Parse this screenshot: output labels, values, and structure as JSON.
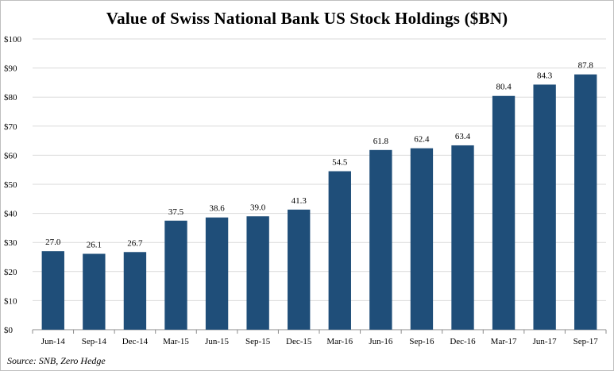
{
  "chart_data": {
    "type": "bar",
    "title": "Value of Swiss National Bank US Stock Holdings ($BN)",
    "xlabel": "",
    "ylabel": "",
    "categories": [
      "Jun-14",
      "Sep-14",
      "Dec-14",
      "Mar-15",
      "Jun-15",
      "Sep-15",
      "Dec-15",
      "Mar-16",
      "Jun-16",
      "Sep-16",
      "Dec-16",
      "Mar-17",
      "Jun-17",
      "Sep-17"
    ],
    "values": [
      27.0,
      26.1,
      26.7,
      37.5,
      38.6,
      39.0,
      41.3,
      54.5,
      61.8,
      62.4,
      63.4,
      80.4,
      84.3,
      87.8
    ],
    "data_labels": [
      "27.0",
      "26.1",
      "26.7",
      "37.5",
      "38.6",
      "39.0",
      "41.3",
      "54.5",
      "61.8",
      "62.4",
      "63.4",
      "80.4",
      "84.3",
      "87.8"
    ],
    "ylim": [
      0,
      100
    ],
    "yticks": [
      0,
      10,
      20,
      30,
      40,
      50,
      60,
      70,
      80,
      90,
      100
    ],
    "ytick_labels": [
      "$0",
      "$10",
      "$20",
      "$30",
      "$40",
      "$50",
      "$60",
      "$70",
      "$80",
      "$90",
      "$100"
    ],
    "grid": true,
    "legend": "none",
    "bar_color": "#1f4e79",
    "grid_color": "#d9d9d9",
    "source": "Source: SNB, Zero Hedge"
  }
}
